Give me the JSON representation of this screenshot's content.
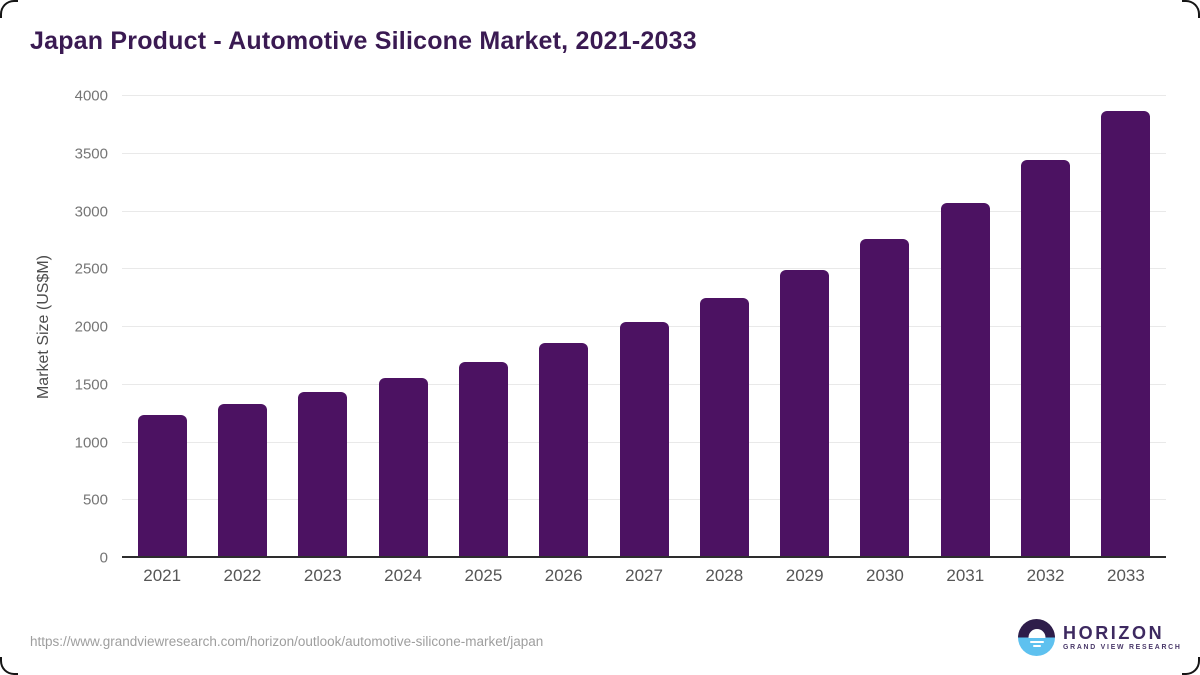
{
  "title": "Japan Product - Automotive Silicone Market, 2021-2033",
  "chart_data": {
    "type": "bar",
    "title": "Japan Product - Automotive Silicone Market, 2021-2033",
    "categories": [
      "2021",
      "2022",
      "2023",
      "2024",
      "2025",
      "2026",
      "2027",
      "2028",
      "2029",
      "2030",
      "2031",
      "2032",
      "2033"
    ],
    "values": [
      1240,
      1330,
      1440,
      1560,
      1700,
      1860,
      2040,
      2250,
      2490,
      2760,
      3070,
      3450,
      3870
    ],
    "xlabel": "",
    "ylabel": "Market Size (US$M)",
    "ylim": [
      0,
      4000
    ],
    "yticks": [
      0,
      500,
      1000,
      1500,
      2000,
      2500,
      3000,
      3500,
      4000
    ],
    "grid": true,
    "legend": "none",
    "bar_color": "#4c1262"
  },
  "colors": {
    "title_text": "#3a1a52",
    "bar": "#4c1262",
    "gridline": "#e9e9e9",
    "axis_line": "#2d2d2d",
    "ytick_text": "#757575",
    "xtick_text": "#565656",
    "url_text": "#9e9e9e",
    "logo_dark_purple": "#2e1d4a",
    "logo_light_blue": "#5ec1ef",
    "logo_text_purple": "#3d2960"
  },
  "footer": {
    "source_url": "https://www.grandviewresearch.com/horizon/outlook/automotive-silicone-market/japan",
    "logo": {
      "name": "HORIZON",
      "subtitle": "GRAND VIEW RESEARCH"
    }
  }
}
